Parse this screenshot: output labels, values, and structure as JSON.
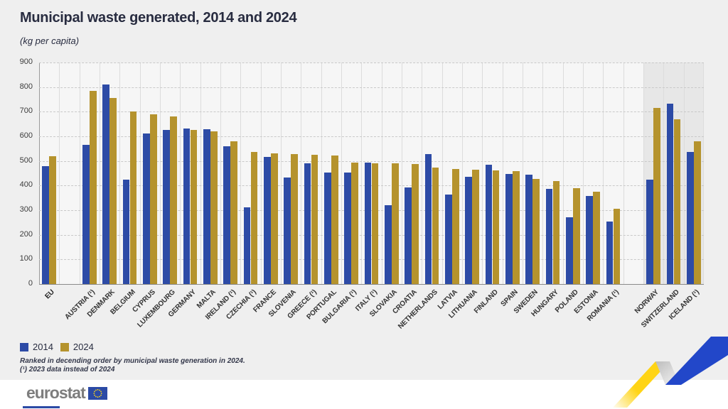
{
  "chart_data": {
    "type": "bar",
    "title": "Municipal waste generated, 2014 and 2024",
    "subtitle": "(kg per capita)",
    "ylabel": "kg per capita",
    "ylim": [
      0,
      900
    ],
    "yticks": [
      0,
      100,
      200,
      300,
      400,
      500,
      600,
      700,
      800,
      900
    ],
    "grid": "horizontal dashed lines, vertical column separators",
    "legend_position": "bottom-left",
    "categories": [
      "EU",
      "AUSTRIA (¹)",
      "DENMARK",
      "BELGIUM",
      "CYPRUS",
      "LUXEMBOURG",
      "GERMANY",
      "MALTA",
      "IRELAND (¹)",
      "CZECHIA (¹)",
      "FRANCE",
      "SLOVENIA",
      "GREECE (¹)",
      "PORTUGAL",
      "BULGARIA (¹)",
      "ITALY (¹)",
      "SLOVAKIA",
      "CROATIA",
      "NETHERLANDS",
      "LATVIA",
      "LITHUANIA",
      "FINLAND",
      "SPAIN",
      "SWEDEN",
      "HUNGARY",
      "POLAND",
      "ESTONIA",
      "ROMANIA (¹)",
      "NORWAY",
      "SWITZERLAND",
      "ICELAND (¹)"
    ],
    "series": [
      {
        "name": "2014",
        "color": "#2d4ba6",
        "values": [
          478,
          566,
          810,
          425,
          612,
          627,
          631,
          630,
          561,
          312,
          517,
          434,
          490,
          453,
          452,
          494,
          321,
          393,
          527,
          364,
          436,
          484,
          448,
          443,
          388,
          272,
          357,
          254,
          425,
          733,
          537
        ]
      },
      {
        "name": "2024",
        "color": "#b5932d",
        "values": [
          518,
          784,
          756,
          700,
          690,
          680,
          627,
          620,
          580,
          537,
          531,
          528,
          524,
          521,
          492,
          490,
          489,
          487,
          473,
          466,
          465,
          462,
          458,
          428,
          417,
          389,
          376,
          306,
          716,
          670,
          580
        ]
      }
    ],
    "gap_after_indices": [
      0,
      27
    ],
    "shaded_from_index": 28,
    "shaded_color": "#e7e7e7"
  },
  "chart": {
    "footnotes": [
      "Ranked in decending order by municipal waste generation in 2024.",
      "(¹) 2023 data instead of 2024"
    ]
  },
  "logo": {
    "text": "eurostat",
    "flag_color": "#2b4aa5",
    "star_color": "#ffd617"
  },
  "decoration": {
    "ribbon_yellow": "#ffd415",
    "ribbon_blue": "#2247c9",
    "ribbon_grey": "#c9c9c9"
  }
}
